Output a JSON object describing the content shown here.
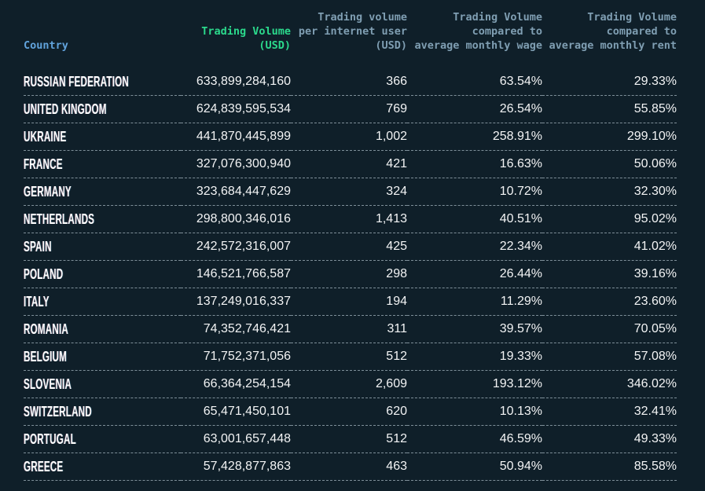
{
  "colors": {
    "background": "#0f1f29",
    "country_header": "#61a3dc",
    "volume_header": "#2bd98c",
    "muted_header": "#7f9eb2",
    "row_text": "#f3f4f5",
    "divider": "#9eafb9"
  },
  "chart_data": {
    "type": "table",
    "columns": [
      {
        "key": "country",
        "label": "Country"
      },
      {
        "key": "volume",
        "label": "Trading Volume\n(USD)"
      },
      {
        "key": "per_user",
        "label": "Trading volume\nper internet user\n(USD)"
      },
      {
        "key": "vs_wage",
        "label": "Trading Volume\ncompared to\naverage monthly wage"
      },
      {
        "key": "vs_rent",
        "label": "Trading Volume\ncompared to\naverage monthly rent"
      }
    ],
    "rows": [
      {
        "country": "RUSSIAN FEDERATION",
        "volume": "633,899,284,160",
        "per_user": "366",
        "vs_wage": "63.54%",
        "vs_rent": "29.33%"
      },
      {
        "country": "UNITED KINGDOM",
        "volume": "624,839,595,534",
        "per_user": "769",
        "vs_wage": "26.54%",
        "vs_rent": "55.85%"
      },
      {
        "country": "UKRAINE",
        "volume": "441,870,445,899",
        "per_user": "1,002",
        "vs_wage": "258.91%",
        "vs_rent": "299.10%"
      },
      {
        "country": "FRANCE",
        "volume": "327,076,300,940",
        "per_user": "421",
        "vs_wage": "16.63%",
        "vs_rent": "50.06%"
      },
      {
        "country": "GERMANY",
        "volume": "323,684,447,629",
        "per_user": "324",
        "vs_wage": "10.72%",
        "vs_rent": "32.30%"
      },
      {
        "country": "NETHERLANDS",
        "volume": "298,800,346,016",
        "per_user": "1,413",
        "vs_wage": "40.51%",
        "vs_rent": "95.02%"
      },
      {
        "country": "SPAIN",
        "volume": "242,572,316,007",
        "per_user": "425",
        "vs_wage": "22.34%",
        "vs_rent": "41.02%"
      },
      {
        "country": "POLAND",
        "volume": "146,521,766,587",
        "per_user": "298",
        "vs_wage": "26.44%",
        "vs_rent": "39.16%"
      },
      {
        "country": "ITALY",
        "volume": "137,249,016,337",
        "per_user": "194",
        "vs_wage": "11.29%",
        "vs_rent": "23.60%"
      },
      {
        "country": "ROMANIA",
        "volume": "74,352,746,421",
        "per_user": "311",
        "vs_wage": "39.57%",
        "vs_rent": "70.05%"
      },
      {
        "country": "BELGIUM",
        "volume": "71,752,371,056",
        "per_user": "512",
        "vs_wage": "19.33%",
        "vs_rent": "57.08%"
      },
      {
        "country": "SLOVENIA",
        "volume": "66,364,254,154",
        "per_user": "2,609",
        "vs_wage": "193.12%",
        "vs_rent": "346.02%"
      },
      {
        "country": "SWITZERLAND",
        "volume": "65,471,450,101",
        "per_user": "620",
        "vs_wage": "10.13%",
        "vs_rent": "32.41%"
      },
      {
        "country": "PORTUGAL",
        "volume": "63,001,657,448",
        "per_user": "512",
        "vs_wage": "46.59%",
        "vs_rent": "49.33%"
      },
      {
        "country": "GREECE",
        "volume": "57,428,877,863",
        "per_user": "463",
        "vs_wage": "50.94%",
        "vs_rent": "85.58%"
      }
    ]
  }
}
